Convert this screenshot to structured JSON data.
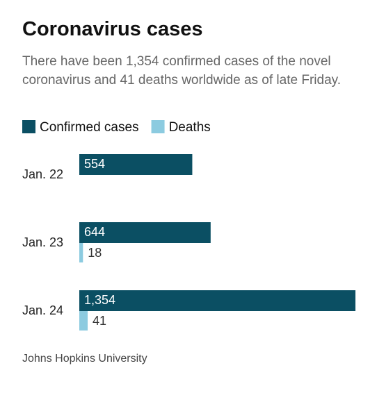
{
  "chart_data": {
    "type": "bar",
    "orientation": "horizontal",
    "title": "Coronavirus cases",
    "subtitle": "There have been 1,354 confirmed cases of the novel coronavirus and 41 deaths worldwide as of late Friday.",
    "source": "Johns Hopkins University",
    "categories": [
      "Jan. 22",
      "Jan. 23",
      "Jan. 24"
    ],
    "series": [
      {
        "name": "Confirmed cases",
        "color": "#0b4f63",
        "values": [
          554,
          644,
          1354
        ],
        "value_labels": [
          "554",
          "644",
          "1,354"
        ]
      },
      {
        "name": "Deaths",
        "color": "#8ccbe0",
        "values": [
          null,
          18,
          41
        ]
      }
    ]
  }
}
